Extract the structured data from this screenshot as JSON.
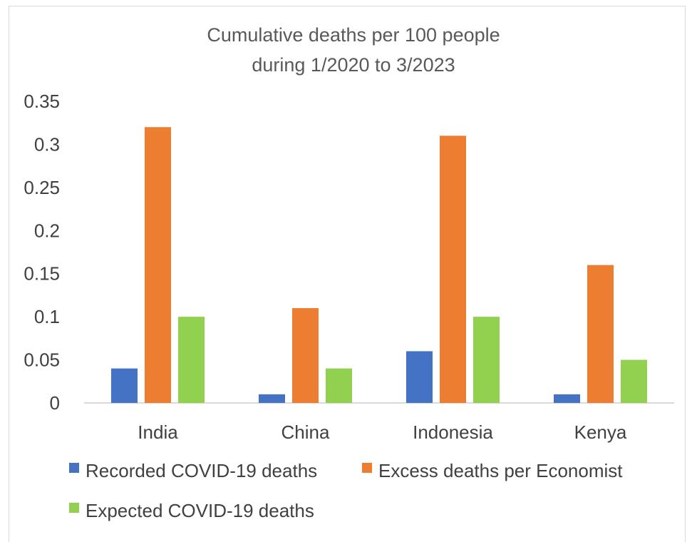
{
  "chart_data": {
    "type": "bar",
    "title": "Cumulative deaths per 100 people",
    "subtitle": "during 1/2020 to 3/2023",
    "xlabel": "",
    "ylabel": "",
    "categories": [
      "India",
      "China",
      "Indonesia",
      "Kenya"
    ],
    "series": [
      {
        "name": "Recorded COVID-19 deaths",
        "color": "#4472C4",
        "values": [
          0.04,
          0.01,
          0.06,
          0.01
        ]
      },
      {
        "name": "Excess deaths per Economist",
        "color": "#ED7D31",
        "values": [
          0.32,
          0.11,
          0.31,
          0.16
        ]
      },
      {
        "name": "Expected COVID-19 deaths",
        "color": "#92D050",
        "values": [
          0.1,
          0.04,
          0.1,
          0.05
        ]
      }
    ],
    "ylim": [
      0,
      0.35
    ],
    "yticks": [
      "0",
      "0.05",
      "0.1",
      "0.15",
      "0.2",
      "0.25",
      "0.3",
      "0.35"
    ],
    "yticks_values": [
      0,
      0.05,
      0.1,
      0.15,
      0.2,
      0.25,
      0.3,
      0.35
    ],
    "grid": false,
    "legend_position": "bottom"
  }
}
